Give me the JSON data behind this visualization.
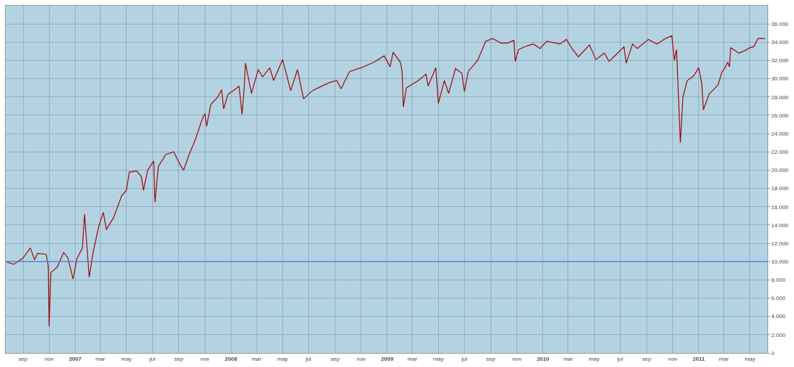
{
  "chart_data": {
    "type": "line",
    "grid": true,
    "marker": "none",
    "line_style": "solid",
    "xlim": [
      "2006-07-22",
      "2011-06-11"
    ],
    "xticks": [
      {
        "value": "2006-09-01",
        "label": "sep"
      },
      {
        "value": "2006-11-01",
        "label": "nov"
      },
      {
        "value": "2007-01-01",
        "label": "2007"
      },
      {
        "value": "2007-03-01",
        "label": "mar"
      },
      {
        "value": "2007-05-01",
        "label": "may"
      },
      {
        "value": "2007-07-01",
        "label": "jul"
      },
      {
        "value": "2007-09-01",
        "label": "sep"
      },
      {
        "value": "2007-11-01",
        "label": "nov"
      },
      {
        "value": "2008-01-01",
        "label": "2008"
      },
      {
        "value": "2008-03-01",
        "label": "mar"
      },
      {
        "value": "2008-05-01",
        "label": "may"
      },
      {
        "value": "2008-07-01",
        "label": "jul"
      },
      {
        "value": "2008-09-01",
        "label": "sep"
      },
      {
        "value": "2008-11-01",
        "label": "nov"
      },
      {
        "value": "2009-01-01",
        "label": "2009"
      },
      {
        "value": "2009-03-01",
        "label": "mar"
      },
      {
        "value": "2009-05-01",
        "label": "may"
      },
      {
        "value": "2009-07-01",
        "label": "jul"
      },
      {
        "value": "2009-09-01",
        "label": "sep"
      },
      {
        "value": "2009-11-01",
        "label": "nov"
      },
      {
        "value": "2010-01-01",
        "label": "2010"
      },
      {
        "value": "2010-03-01",
        "label": "mar"
      },
      {
        "value": "2010-05-01",
        "label": "may"
      },
      {
        "value": "2010-07-01",
        "label": "jul"
      },
      {
        "value": "2010-09-01",
        "label": "sep"
      },
      {
        "value": "2010-11-01",
        "label": "nov"
      },
      {
        "value": "2011-01-01",
        "label": "2011"
      },
      {
        "value": "2011-03-01",
        "label": "mar"
      },
      {
        "value": "2011-05-01",
        "label": "may"
      }
    ],
    "ylim": [
      0,
      38000
    ],
    "yticks": [
      0,
      {
        "value": 2000,
        "label": "2.000"
      },
      {
        "value": 4000,
        "label": "4.000"
      },
      {
        "value": 6000,
        "label": "6.000"
      },
      {
        "value": 8000,
        "label": "8.000"
      },
      {
        "value": 10000,
        "label": "10.000"
      },
      {
        "value": 12000,
        "label": "12.000"
      },
      {
        "value": 14000,
        "label": "14.000"
      },
      {
        "value": 16000,
        "label": "16.000"
      },
      {
        "value": 18000,
        "label": "18.000"
      },
      {
        "value": 20000,
        "label": "20.000"
      },
      {
        "value": 22000,
        "label": "22.000"
      },
      {
        "value": 24000,
        "label": "24.000"
      },
      {
        "value": 26000,
        "label": "26.000"
      },
      {
        "value": 28000,
        "label": "28.000"
      },
      {
        "value": 30000,
        "label": "30.000"
      },
      {
        "value": 32000,
        "label": "32.000"
      },
      {
        "value": 34000,
        "label": "34.000"
      },
      {
        "value": 36000,
        "label": "36.000"
      }
    ],
    "ref_lines": [
      {
        "axis": "y",
        "value": 10000,
        "color": "#5b7fd6"
      }
    ],
    "series": [
      {
        "color": "#a00000",
        "x": [
          "2006-07-22",
          "2006-08-10",
          "2006-09-01",
          "2006-09-18",
          "2006-09-28",
          "2006-10-05",
          "2006-10-25",
          "2006-10-30",
          "2006-11-01",
          "2006-11-05",
          "2006-11-20",
          "2006-12-05",
          "2006-12-15",
          "2006-12-27",
          "2007-01-05",
          "2007-01-18",
          "2007-01-23",
          "2007-02-01",
          "2007-02-03",
          "2007-02-12",
          "2007-02-25",
          "2007-03-08",
          "2007-03-15",
          "2007-04-01",
          "2007-04-20",
          "2007-05-01",
          "2007-05-08",
          "2007-05-25",
          "2007-06-05",
          "2007-06-10",
          "2007-06-20",
          "2007-07-04",
          "2007-07-07",
          "2007-07-15",
          "2007-08-01",
          "2007-08-20",
          "2007-09-05",
          "2007-09-12",
          "2007-09-25",
          "2007-10-10",
          "2007-10-25",
          "2007-11-01",
          "2007-11-05",
          "2007-11-15",
          "2007-12-01",
          "2007-12-10",
          "2007-12-15",
          "2007-12-25",
          "2008-01-10",
          "2008-01-20",
          "2008-01-27",
          "2008-02-01",
          "2008-02-04",
          "2008-02-18",
          "2008-03-05",
          "2008-03-15",
          "2008-04-01",
          "2008-04-10",
          "2008-05-01",
          "2008-05-20",
          "2008-06-05",
          "2008-06-19",
          "2008-07-10",
          "2008-08-01",
          "2008-08-20",
          "2008-09-05",
          "2008-09-15",
          "2008-10-05",
          "2008-11-01",
          "2008-12-01",
          "2008-12-25",
          "2009-01-08",
          "2009-01-15",
          "2009-02-01",
          "2009-02-05",
          "2009-02-08",
          "2009-02-15",
          "2009-03-15",
          "2009-04-02",
          "2009-04-07",
          "2009-04-25",
          "2009-05-01",
          "2009-05-15",
          "2009-05-25",
          "2009-06-10",
          "2009-06-25",
          "2009-07-01",
          "2009-07-10",
          "2009-08-01",
          "2009-08-20",
          "2009-09-05",
          "2009-09-25",
          "2009-10-10",
          "2009-10-25",
          "2009-10-28",
          "2009-11-05",
          "2009-11-25",
          "2009-12-10",
          "2009-12-25",
          "2010-01-10",
          "2010-02-10",
          "2010-02-25",
          "2010-03-10",
          "2010-03-25",
          "2010-04-20",
          "2010-05-05",
          "2010-05-25",
          "2010-06-05",
          "2010-06-25",
          "2010-07-10",
          "2010-07-15",
          "2010-07-30",
          "2010-08-10",
          "2010-09-05",
          "2010-09-25",
          "2010-10-15",
          "2010-10-30",
          "2010-11-05",
          "2010-11-10",
          "2010-11-19",
          "2010-11-25",
          "2010-12-05",
          "2010-12-20",
          "2011-01-01",
          "2011-01-08",
          "2011-01-12",
          "2011-01-25",
          "2011-02-15",
          "2011-02-25",
          "2011-03-01",
          "2011-03-10",
          "2011-03-14",
          "2011-03-17",
          "2011-04-05",
          "2011-04-20",
          "2011-05-01",
          "2011-05-10",
          "2011-05-20",
          "2011-06-05"
        ],
        "values": [
          10000,
          9700,
          10400,
          11500,
          10200,
          10900,
          10800,
          9500,
          2900,
          8800,
          9400,
          11000,
          10400,
          8100,
          10300,
          11500,
          15200,
          9500,
          8300,
          11000,
          13800,
          15400,
          13500,
          14800,
          17200,
          17800,
          19800,
          19900,
          19300,
          17800,
          20000,
          21000,
          16500,
          20400,
          21700,
          22000,
          20500,
          20000,
          21700,
          23400,
          25500,
          26200,
          24800,
          27200,
          28000,
          28800,
          26700,
          28300,
          28800,
          29200,
          26100,
          29000,
          31700,
          28400,
          31000,
          30200,
          31200,
          29800,
          32100,
          28700,
          31000,
          27800,
          28700,
          29200,
          29600,
          29800,
          28900,
          30800,
          31200,
          31800,
          32500,
          31300,
          32900,
          31800,
          30800,
          26900,
          29000,
          29800,
          30500,
          29200,
          31200,
          27300,
          29800,
          28400,
          31100,
          30600,
          28600,
          30800,
          32000,
          34100,
          34400,
          33900,
          33900,
          34200,
          31900,
          33200,
          33600,
          33800,
          33300,
          34100,
          33800,
          34300,
          33300,
          32400,
          33700,
          32100,
          32800,
          31900,
          32800,
          33500,
          31700,
          33800,
          33300,
          34300,
          33800,
          34400,
          34700,
          32000,
          33200,
          23000,
          28000,
          29800,
          30300,
          31200,
          29500,
          26600,
          28300,
          29300,
          30800,
          31000,
          31800,
          31300,
          33400,
          32800,
          33100,
          33400,
          33500,
          34400,
          34400
        ]
      }
    ]
  }
}
